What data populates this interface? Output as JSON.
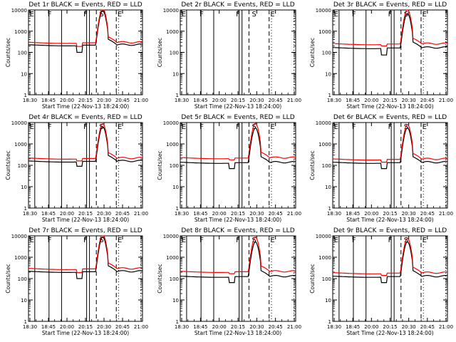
{
  "figure": {
    "background": "#ffffff",
    "events_color": "#000000",
    "lld_color": "#ff0000",
    "ylabel": "Counts/sec",
    "xlabel": "Start Time (22-Nov-13 18:24:00)",
    "x_ticks": [
      "18:30",
      "18:45",
      "20:00",
      "20:15",
      "20:30",
      "20:45",
      "21:00"
    ],
    "y_ticks": [
      "1",
      "10",
      "100",
      "1000",
      "10000"
    ]
  },
  "chart_data": [
    {
      "type": "line",
      "title": "Det 1r BLACK = Events, RED = LLD",
      "events_base": 230,
      "lld_base": 300,
      "dip_events": 100,
      "dip_lld": 190,
      "markers": [
        "E",
        "F",
        "F",
        "S",
        "E"
      ],
      "xlabel": "Start Time (22-Nov-13 18:24:00)",
      "ylabel": "Counts/sec",
      "ylim": [
        1,
        10000
      ],
      "yscale": "log"
    },
    {
      "type": "line",
      "title": "Det 2r BLACK = Events, RED = LLD",
      "events_base": null,
      "lld_base": null,
      "dip_events": null,
      "dip_lld": null,
      "markers": [
        "E",
        "F",
        "F",
        "S",
        "E"
      ],
      "xlabel": "Start Time (22-Nov-13 18:24:00)",
      "ylabel": "Counts/sec",
      "ylim": [
        1,
        10000
      ],
      "yscale": "log"
    },
    {
      "type": "line",
      "title": "Det 3r BLACK = Events, RED = LLD",
      "events_base": 170,
      "lld_base": 260,
      "dip_events": 75,
      "dip_lld": 200,
      "markers": [
        "E",
        "F",
        "F",
        "S",
        "E"
      ],
      "xlabel": "Start Time (22-Nov-13 18:24:00)",
      "ylabel": "Counts/sec",
      "ylim": [
        1,
        10000
      ],
      "yscale": "log"
    },
    {
      "type": "line",
      "title": "Det 4r BLACK = Events, RED = LLD",
      "events_base": 160,
      "lld_base": 220,
      "dip_events": 90,
      "dip_lld": 160,
      "markers": [
        "E",
        "F",
        "F",
        "S",
        "E"
      ],
      "xlabel": "Start Time (22-Nov-13 18:24:00)",
      "ylabel": "Counts/sec",
      "ylim": [
        1,
        10000
      ],
      "yscale": "log"
    },
    {
      "type": "line",
      "title": "Det 5r BLACK = Events, RED = LLD",
      "events_base": 140,
      "lld_base": 230,
      "dip_events": 70,
      "dip_lld": 180,
      "markers": [
        "E",
        "F",
        "F",
        "S",
        "E"
      ],
      "xlabel": "Start Time (22-Nov-13 18:24:00)",
      "ylabel": "Counts/sec",
      "ylim": [
        1,
        10000
      ],
      "yscale": "log"
    },
    {
      "type": "line",
      "title": "Det 6r BLACK = Events, RED = LLD",
      "events_base": 140,
      "lld_base": 200,
      "dip_events": 70,
      "dip_lld": 140,
      "markers": [
        "E",
        "F",
        "F",
        "S",
        "E"
      ],
      "xlabel": "Start Time (22-Nov-13 18:24:00)",
      "ylabel": "Counts/sec",
      "ylim": [
        1,
        10000
      ],
      "yscale": "log"
    },
    {
      "type": "line",
      "title": "Det 7r BLACK = Events, RED = LLD",
      "events_base": 220,
      "lld_base": 300,
      "dip_events": 100,
      "dip_lld": 190,
      "markers": [
        "E",
        "F",
        "F",
        "S",
        "E"
      ],
      "xlabel": "Start Time (22-Nov-13 18:24:00)",
      "ylabel": "Counts/sec",
      "ylim": [
        1,
        10000
      ],
      "yscale": "log"
    },
    {
      "type": "line",
      "title": "Det 8r BLACK = Events, RED = LLD",
      "events_base": 130,
      "lld_base": 220,
      "dip_events": 65,
      "dip_lld": 170,
      "markers": [
        "E",
        "F",
        "F",
        "S",
        "E"
      ],
      "xlabel": "Start Time (22-Nov-13 18:24:00)",
      "ylabel": "Counts/sec",
      "ylim": [
        1,
        10000
      ],
      "yscale": "log"
    },
    {
      "type": "line",
      "title": "Det 9r BLACK = Events, RED = LLD",
      "events_base": 130,
      "lld_base": 190,
      "dip_events": 65,
      "dip_lld": 140,
      "markers": [
        "E",
        "F",
        "F",
        "S",
        "E"
      ],
      "xlabel": "Start Time (22-Nov-13 18:24:00)",
      "ylabel": "Counts/sec",
      "ylim": [
        1,
        10000
      ],
      "yscale": "log"
    }
  ]
}
